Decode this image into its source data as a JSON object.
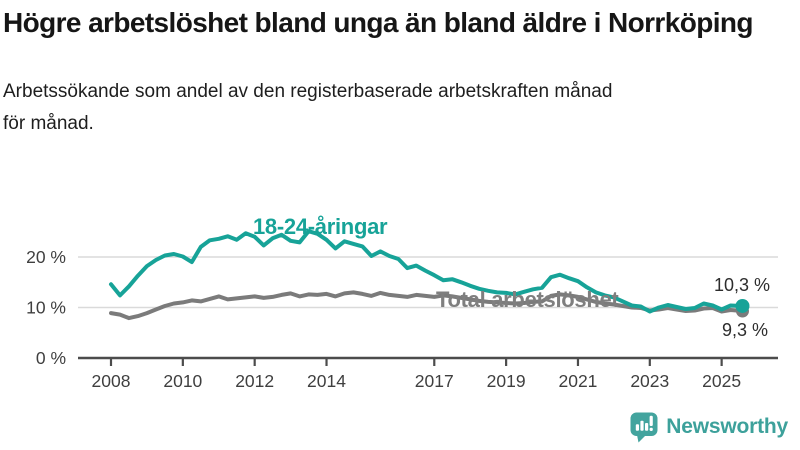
{
  "chart_data": {
    "type": "line",
    "title": "Högre arbetslöshet bland unga än bland äldre i Norrköping",
    "subtitle": "Arbetssökande som andel av den registerbaserade arbetskraften månad för månad.",
    "subtitle_lines": [
      "Arbetssökande som andel av den registerbaserade arbetskraften månad",
      "för månad."
    ],
    "unit": "%",
    "xlim": [
      2007.1,
      2026.6
    ],
    "ylim": [
      0,
      29
    ],
    "grid": "horizontal-only",
    "legend_position": "inline-labels-on-lines",
    "x_ticks": [
      2008,
      2010,
      2012,
      2014,
      2017,
      2019,
      2021,
      2023,
      2025
    ],
    "y_ticks": [
      {
        "value": 0,
        "label": "0 %"
      },
      {
        "value": 10,
        "label": "10 %"
      },
      {
        "value": 20,
        "label": "20 %"
      }
    ],
    "gridline_values": [
      10,
      20
    ],
    "colors": {
      "grid": "#dadada",
      "axis": "#4c4c4c",
      "axis_text": "#3f3f3f",
      "youth": "#17a398",
      "total": "#7f7f7f"
    },
    "series": [
      {
        "name": "Total arbetslöshet",
        "color": "#7b7b7b",
        "end_value": 9.3,
        "end_value_label": "9,3 %",
        "points": [
          [
            2008.0,
            8.9
          ],
          [
            2008.25,
            8.6
          ],
          [
            2008.5,
            7.9
          ],
          [
            2008.75,
            8.3
          ],
          [
            2009.0,
            8.9
          ],
          [
            2009.25,
            9.6
          ],
          [
            2009.5,
            10.3
          ],
          [
            2009.75,
            10.8
          ],
          [
            2010.0,
            11.0
          ],
          [
            2010.25,
            11.4
          ],
          [
            2010.5,
            11.2
          ],
          [
            2010.75,
            11.7
          ],
          [
            2011.0,
            12.2
          ],
          [
            2011.25,
            11.6
          ],
          [
            2011.5,
            11.8
          ],
          [
            2011.75,
            12.0
          ],
          [
            2012.0,
            12.2
          ],
          [
            2012.25,
            11.9
          ],
          [
            2012.5,
            12.1
          ],
          [
            2012.75,
            12.5
          ],
          [
            2013.0,
            12.8
          ],
          [
            2013.25,
            12.2
          ],
          [
            2013.5,
            12.6
          ],
          [
            2013.75,
            12.5
          ],
          [
            2014.0,
            12.7
          ],
          [
            2014.25,
            12.2
          ],
          [
            2014.5,
            12.8
          ],
          [
            2014.75,
            13.0
          ],
          [
            2015.0,
            12.7
          ],
          [
            2015.25,
            12.3
          ],
          [
            2015.5,
            12.9
          ],
          [
            2015.75,
            12.5
          ],
          [
            2016.0,
            12.3
          ],
          [
            2016.25,
            12.1
          ],
          [
            2016.5,
            12.5
          ],
          [
            2016.75,
            12.3
          ],
          [
            2017.0,
            12.1
          ],
          [
            2017.25,
            12.4
          ],
          [
            2017.5,
            12.2
          ],
          [
            2017.75,
            11.9
          ],
          [
            2018.0,
            11.6
          ],
          [
            2018.25,
            11.3
          ],
          [
            2018.5,
            11.1
          ],
          [
            2018.75,
            11.0
          ],
          [
            2019.0,
            10.9
          ],
          [
            2019.25,
            10.8
          ],
          [
            2019.5,
            10.9
          ],
          [
            2019.75,
            11.1
          ],
          [
            2020.0,
            11.2
          ],
          [
            2020.25,
            12.3
          ],
          [
            2020.5,
            12.6
          ],
          [
            2020.75,
            12.4
          ],
          [
            2021.0,
            12.1
          ],
          [
            2021.25,
            11.6
          ],
          [
            2021.5,
            11.1
          ],
          [
            2021.75,
            10.8
          ],
          [
            2022.0,
            10.6
          ],
          [
            2022.25,
            10.3
          ],
          [
            2022.5,
            10.0
          ],
          [
            2022.75,
            9.9
          ],
          [
            2023.0,
            9.4
          ],
          [
            2023.25,
            9.6
          ],
          [
            2023.5,
            9.9
          ],
          [
            2023.75,
            9.6
          ],
          [
            2024.0,
            9.3
          ],
          [
            2024.25,
            9.4
          ],
          [
            2024.5,
            9.8
          ],
          [
            2024.75,
            9.9
          ],
          [
            2025.0,
            9.2
          ],
          [
            2025.25,
            9.5
          ],
          [
            2025.58,
            9.3
          ]
        ]
      },
      {
        "name": "18-24-åringar",
        "color": "#17a398",
        "end_value": 10.3,
        "end_value_label": "10,3 %",
        "points": [
          [
            2008.0,
            14.6
          ],
          [
            2008.25,
            12.4
          ],
          [
            2008.5,
            14.2
          ],
          [
            2008.75,
            16.3
          ],
          [
            2009.0,
            18.2
          ],
          [
            2009.25,
            19.4
          ],
          [
            2009.5,
            20.3
          ],
          [
            2009.75,
            20.6
          ],
          [
            2010.0,
            20.1
          ],
          [
            2010.25,
            19.0
          ],
          [
            2010.5,
            22.0
          ],
          [
            2010.75,
            23.3
          ],
          [
            2011.0,
            23.6
          ],
          [
            2011.25,
            24.1
          ],
          [
            2011.5,
            23.4
          ],
          [
            2011.75,
            24.7
          ],
          [
            2012.0,
            24.0
          ],
          [
            2012.25,
            22.3
          ],
          [
            2012.5,
            23.7
          ],
          [
            2012.75,
            24.4
          ],
          [
            2013.0,
            23.2
          ],
          [
            2013.25,
            22.9
          ],
          [
            2013.5,
            25.1
          ],
          [
            2013.75,
            24.6
          ],
          [
            2014.0,
            23.4
          ],
          [
            2014.25,
            21.7
          ],
          [
            2014.5,
            23.1
          ],
          [
            2014.75,
            22.6
          ],
          [
            2015.0,
            22.1
          ],
          [
            2015.25,
            20.2
          ],
          [
            2015.5,
            21.1
          ],
          [
            2015.75,
            20.2
          ],
          [
            2016.0,
            19.6
          ],
          [
            2016.25,
            17.8
          ],
          [
            2016.5,
            18.3
          ],
          [
            2016.75,
            17.3
          ],
          [
            2017.0,
            16.4
          ],
          [
            2017.25,
            15.4
          ],
          [
            2017.5,
            15.6
          ],
          [
            2017.75,
            15.0
          ],
          [
            2018.0,
            14.3
          ],
          [
            2018.25,
            13.7
          ],
          [
            2018.5,
            13.3
          ],
          [
            2018.75,
            13.0
          ],
          [
            2019.0,
            12.9
          ],
          [
            2019.25,
            12.6
          ],
          [
            2019.5,
            13.1
          ],
          [
            2019.75,
            13.6
          ],
          [
            2020.0,
            13.9
          ],
          [
            2020.25,
            16.0
          ],
          [
            2020.5,
            16.5
          ],
          [
            2020.75,
            15.8
          ],
          [
            2021.0,
            15.2
          ],
          [
            2021.25,
            14.0
          ],
          [
            2021.5,
            13.0
          ],
          [
            2021.75,
            12.4
          ],
          [
            2022.0,
            12.0
          ],
          [
            2022.25,
            11.2
          ],
          [
            2022.5,
            10.4
          ],
          [
            2022.75,
            10.2
          ],
          [
            2023.0,
            9.2
          ],
          [
            2023.25,
            10.0
          ],
          [
            2023.5,
            10.5
          ],
          [
            2023.75,
            10.1
          ],
          [
            2024.0,
            9.7
          ],
          [
            2024.25,
            9.9
          ],
          [
            2024.5,
            10.8
          ],
          [
            2024.75,
            10.4
          ],
          [
            2025.0,
            9.6
          ],
          [
            2025.25,
            10.4
          ],
          [
            2025.58,
            10.3
          ]
        ]
      }
    ]
  },
  "footer": {
    "brand": "Newsworthy",
    "logo_icon": "speech-bubble-bar-chart-icon",
    "brand_color": "#3da19b"
  }
}
